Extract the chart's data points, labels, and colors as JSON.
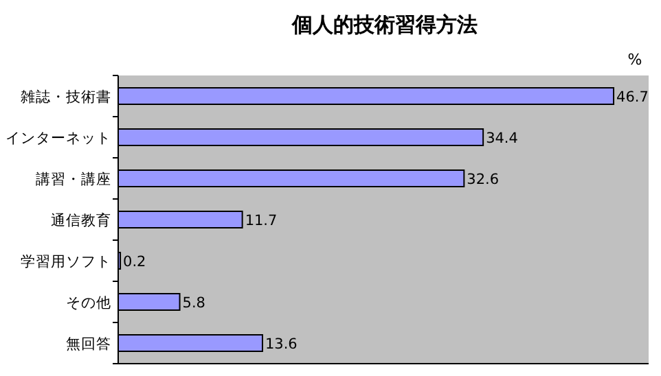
{
  "chart_data": {
    "type": "bar",
    "orientation": "horizontal",
    "title": "個人的技術習得方法",
    "xlabel": "%",
    "categories": [
      "雑誌・技術書",
      "インターネット",
      "講習・講座",
      "通信教育",
      "学習用ソフト",
      "その他",
      "無回答"
    ],
    "values": [
      46.7,
      34.4,
      32.6,
      11.7,
      0.2,
      5.8,
      13.6
    ],
    "color": "#9999ff",
    "xlim": [
      0,
      50
    ],
    "data_labels": true
  }
}
